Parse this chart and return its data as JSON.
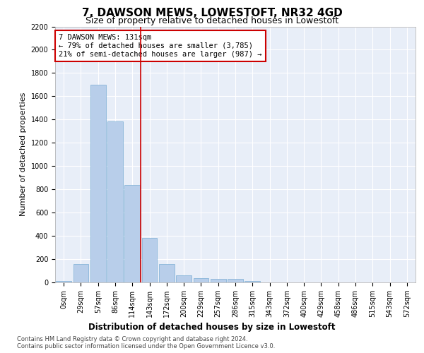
{
  "title": "7, DAWSON MEWS, LOWESTOFT, NR32 4GD",
  "subtitle": "Size of property relative to detached houses in Lowestoft",
  "xlabel": "Distribution of detached houses by size in Lowestoft",
  "ylabel": "Number of detached properties",
  "bar_labels": [
    "0sqm",
    "29sqm",
    "57sqm",
    "86sqm",
    "114sqm",
    "143sqm",
    "172sqm",
    "200sqm",
    "229sqm",
    "257sqm",
    "286sqm",
    "315sqm",
    "343sqm",
    "372sqm",
    "400sqm",
    "429sqm",
    "458sqm",
    "486sqm",
    "515sqm",
    "543sqm",
    "572sqm"
  ],
  "bar_values": [
    15,
    155,
    1700,
    1385,
    835,
    380,
    160,
    60,
    35,
    28,
    28,
    10,
    0,
    0,
    0,
    0,
    0,
    0,
    0,
    0,
    0
  ],
  "bar_color": "#b8ceea",
  "bar_edge_color": "#7aadd4",
  "bg_color": "#e8eef8",
  "grid_color": "#ffffff",
  "vline_x": 4.5,
  "vline_color": "#cc0000",
  "annotation_text": "7 DAWSON MEWS: 131sqm\n← 79% of detached houses are smaller (3,785)\n21% of semi-detached houses are larger (987) →",
  "annotation_box_color": "#cc0000",
  "ylim": [
    0,
    2200
  ],
  "yticks": [
    0,
    200,
    400,
    600,
    800,
    1000,
    1200,
    1400,
    1600,
    1800,
    2000,
    2200
  ],
  "footer_text": "Contains HM Land Registry data © Crown copyright and database right 2024.\nContains public sector information licensed under the Open Government Licence v3.0.",
  "title_fontsize": 11,
  "subtitle_fontsize": 9,
  "xlabel_fontsize": 8.5,
  "ylabel_fontsize": 8,
  "tick_fontsize": 7,
  "annotation_fontsize": 7.5,
  "footer_fontsize": 6
}
